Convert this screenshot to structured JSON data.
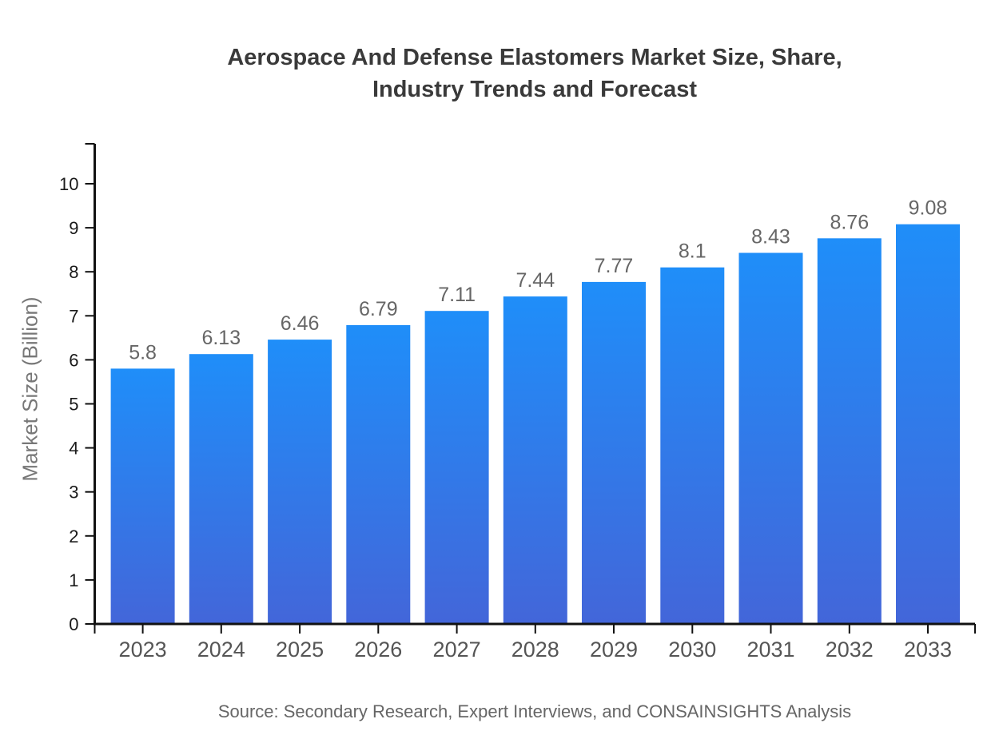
{
  "title": {
    "line1": "Aerospace And Defense Elastomers Market Size, Share,",
    "line2": "Industry Trends and Forecast"
  },
  "source": "Source: Secondary Research, Expert Interviews, and CONSAINSIGHTS Analysis",
  "chart_data": {
    "type": "bar",
    "title": "Aerospace And Defense Elastomers Market Size, Share, Industry Trends and Forecast",
    "xlabel": "",
    "ylabel": "Market Size (Billion)",
    "categories": [
      "2023",
      "2024",
      "2025",
      "2026",
      "2027",
      "2028",
      "2029",
      "2030",
      "2031",
      "2032",
      "2033"
    ],
    "values": [
      5.8,
      6.13,
      6.46,
      6.79,
      7.11,
      7.44,
      7.77,
      8.1,
      8.43,
      8.76,
      9.08
    ],
    "value_labels": [
      "5.8",
      "6.13",
      "6.46",
      "6.79",
      "7.11",
      "7.44",
      "7.77",
      "8.1",
      "8.43",
      "8.76",
      "9.08"
    ],
    "ylim": [
      0,
      10
    ],
    "yticks": [
      0,
      1,
      2,
      3,
      4,
      5,
      6,
      7,
      8,
      9,
      10
    ],
    "grid": false,
    "legend": "none",
    "colors": {
      "bar_gradient_top": "#1F8EF9",
      "bar_gradient_bottom": "#4366D9",
      "axis": "#111111",
      "y_tick_label": "#1a1a1a",
      "x_tick_label": "#555555",
      "value_label": "#666666",
      "title": "#3a3a3a",
      "source": "#666666",
      "y_axis_title": "#777777",
      "background": "#ffffff"
    }
  }
}
